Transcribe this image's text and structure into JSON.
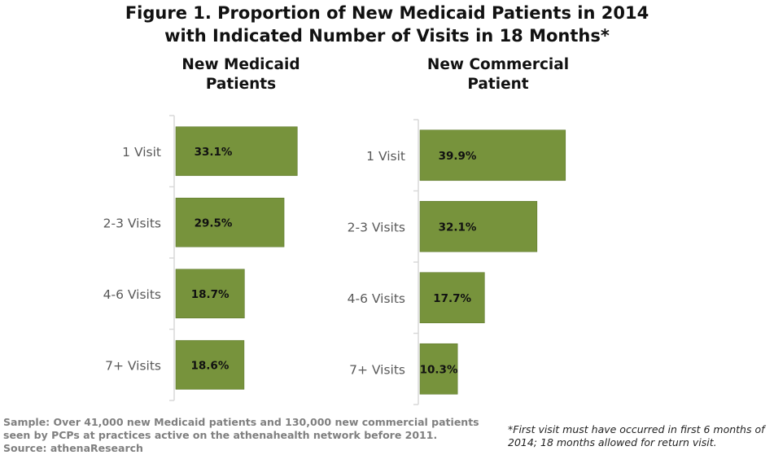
{
  "title_line1": "Figure 1. Proportion of New Medicaid Patients in 2014",
  "title_line2": "with Indicated Number of Visits in 18 Months*",
  "colors": {
    "bar": "#77933c",
    "bar_border": "#5f7a2e",
    "axis": "#d9d9d9"
  },
  "chart_data": [
    {
      "type": "bar",
      "orientation": "horizontal",
      "title_lines": [
        "New Medicaid",
        "Patients"
      ],
      "categories": [
        "1 Visit",
        "2-3 Visits",
        "4-6 Visits",
        "7+ Visits"
      ],
      "values": [
        33.1,
        29.5,
        18.7,
        18.6
      ],
      "data_labels": [
        "33.1%",
        "29.5%",
        "18.7%",
        "18.6%"
      ],
      "grid": false
    },
    {
      "type": "bar",
      "orientation": "horizontal",
      "title_lines": [
        "New Commercial",
        "Patient"
      ],
      "categories": [
        "1 Visit",
        "2-3 Visits",
        "4-6 Visits",
        "7+ Visits"
      ],
      "values": [
        39.9,
        32.1,
        17.7,
        10.3
      ],
      "data_labels": [
        "39.9%",
        "32.1%",
        "17.7%",
        "10.3%"
      ],
      "grid": false
    }
  ],
  "footnote": {
    "line1": "Sample: Over 41,000 new Medicaid patients and 130,000 new commercial patients",
    "line2": "seen by PCPs at practices active on the athenahealth network before 2011.",
    "line3": "Source: athenaResearch"
  },
  "footnote_right": {
    "line1": "*First visit must have occurred in first 6 months of",
    "line2": "2014; 18 months allowed for return visit."
  }
}
